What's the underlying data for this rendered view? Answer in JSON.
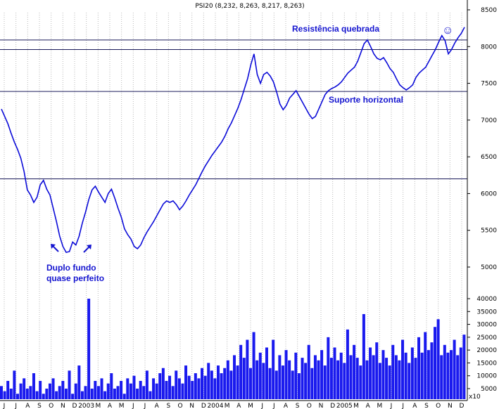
{
  "chart_data": {
    "type": "line",
    "title": "PSI20 (8,232, 8,263, 8,217, 8,263)",
    "price_axis": {
      "ylim": [
        4700,
        8600
      ],
      "ticks": [
        5000,
        5500,
        6000,
        6500,
        7000,
        7500,
        8000,
        8500
      ]
    },
    "volume_axis": {
      "ylim": [
        0,
        42000
      ],
      "ticks": [
        5000,
        10000,
        15000,
        20000,
        25000,
        30000,
        35000,
        40000
      ],
      "unit_label": "x10"
    },
    "x_labels": [
      "J",
      "J",
      "A",
      "S",
      "O",
      "N",
      "D",
      "2003",
      "M",
      "A",
      "M",
      "J",
      "J",
      "A",
      "S",
      "O",
      "N",
      "D",
      "2004",
      "M",
      "A",
      "M",
      "J",
      "J",
      "A",
      "S",
      "O",
      "N",
      "D",
      "2005",
      "M",
      "A",
      "M",
      "J",
      "J",
      "A",
      "S",
      "O",
      "N",
      "D"
    ],
    "levels": [
      {
        "name": "resistance",
        "value": 8090
      },
      {
        "name": "resistance-2",
        "value": 7960
      },
      {
        "name": "support",
        "value": 7390
      },
      {
        "name": "level-low",
        "value": 6200
      }
    ],
    "series": [
      {
        "values": [
          7150,
          7050,
          6950,
          6820,
          6700,
          6600,
          6480,
          6300,
          6050,
          5980,
          5880,
          5950,
          6120,
          6180,
          6060,
          5980,
          5800,
          5620,
          5420,
          5280,
          5200,
          5210,
          5340,
          5300,
          5420,
          5600,
          5750,
          5920,
          6050,
          6100,
          6020,
          5950,
          5880,
          6000,
          6060,
          5940,
          5800,
          5680,
          5520,
          5440,
          5380,
          5280,
          5250,
          5300,
          5400,
          5480,
          5550,
          5620,
          5700,
          5780,
          5860,
          5900,
          5880,
          5900,
          5850,
          5780,
          5830,
          5900,
          5980,
          6050,
          6120,
          6210,
          6300,
          6380,
          6450,
          6520,
          6580,
          6640,
          6700,
          6780,
          6880,
          6960,
          7060,
          7160,
          7280,
          7420,
          7560,
          7750,
          7900,
          7620,
          7500,
          7620,
          7650,
          7600,
          7520,
          7380,
          7220,
          7140,
          7200,
          7300,
          7350,
          7400,
          7320,
          7240,
          7160,
          7080,
          7020,
          7050,
          7150,
          7250,
          7350,
          7400,
          7430,
          7450,
          7480,
          7520,
          7580,
          7640,
          7680,
          7720,
          7800,
          7920,
          8040,
          8090,
          8000,
          7900,
          7840,
          7820,
          7850,
          7780,
          7700,
          7650,
          7560,
          7480,
          7440,
          7410,
          7440,
          7480,
          7580,
          7640,
          7680,
          7720,
          7800,
          7880,
          7960,
          8060,
          8150,
          8080,
          7900,
          7960,
          8050,
          8120,
          8180,
          8263
        ]
      }
    ],
    "volume_values": [
      6,
      4,
      8,
      5,
      12,
      3,
      7,
      9,
      5,
      6,
      11,
      4,
      8,
      3,
      5,
      7,
      9,
      4,
      6,
      8,
      5,
      12,
      3,
      7,
      14,
      4,
      6,
      40,
      5,
      8,
      6,
      9,
      4,
      7,
      11,
      5,
      6,
      8,
      3,
      9,
      7,
      10,
      5,
      8,
      6,
      12,
      4,
      9,
      7,
      11,
      13,
      8,
      10,
      6,
      12,
      9,
      7,
      14,
      10,
      8,
      11,
      9,
      13,
      10,
      15,
      12,
      9,
      14,
      11,
      13,
      16,
      12,
      18,
      14,
      22,
      17,
      24,
      13,
      27,
      16,
      19,
      15,
      21,
      13,
      24,
      12,
      18,
      14,
      20,
      16,
      12,
      19,
      11,
      17,
      15,
      22,
      13,
      18,
      16,
      20,
      14,
      25,
      17,
      21,
      16,
      19,
      15,
      28,
      18,
      22,
      17,
      14,
      34,
      16,
      21,
      18,
      23,
      15,
      20,
      17,
      14,
      22,
      18,
      16,
      24,
      19,
      15,
      21,
      17,
      25,
      19,
      27,
      20,
      23,
      29,
      32,
      18,
      22,
      19,
      20,
      24,
      18,
      21,
      26
    ]
  },
  "annotations": {
    "resistance_label": "Resistência quebrada",
    "support_label": "Suporte horizontal",
    "double_bottom_line1": "Duplo fundo",
    "double_bottom_line2": "quase perfeito",
    "smiley": "☺"
  },
  "colors": {
    "price": "#0b0bd8",
    "volume": "#1a1aee",
    "annotation": "#1515d0",
    "level": "#1a1a5a"
  }
}
